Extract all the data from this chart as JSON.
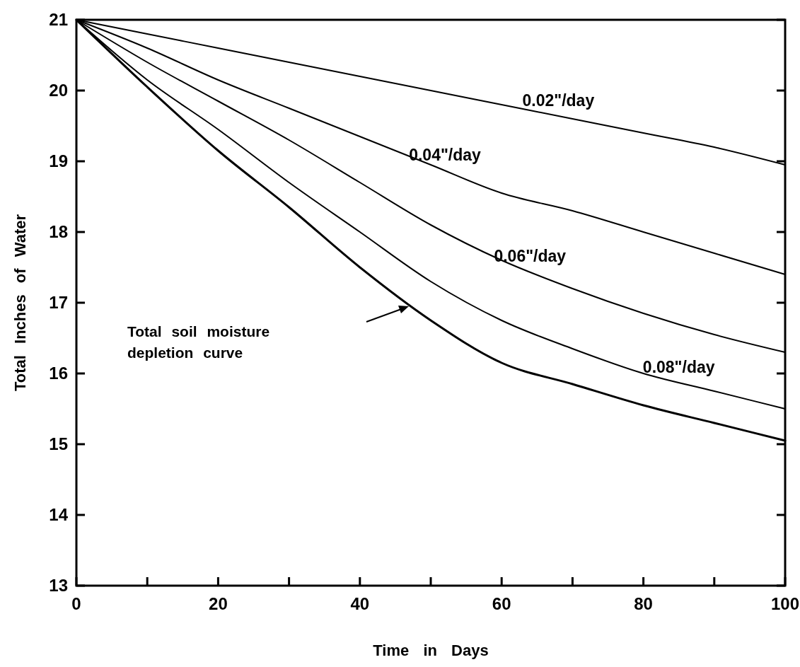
{
  "chart_data": {
    "type": "line",
    "xlabel": "Time in Days",
    "ylabel": "Total Inches of Water",
    "x": [
      0,
      10,
      20,
      30,
      40,
      50,
      60,
      70,
      80,
      90,
      100
    ],
    "xlim": [
      0,
      100
    ],
    "ylim": [
      13,
      21
    ],
    "xticks": [
      0,
      {
        "value": 10,
        "label": null
      },
      20,
      {
        "value": 30,
        "label": null
      },
      40,
      {
        "value": 50,
        "label": null
      },
      60,
      {
        "value": 70,
        "label": null
      },
      80,
      {
        "value": 90,
        "label": null
      },
      100
    ],
    "yticks": [
      13,
      14,
      15,
      16,
      17,
      18,
      19,
      20,
      21
    ],
    "grid": false,
    "legend": false,
    "marker": "none",
    "line_style": "solid",
    "series": [
      {
        "name": "0.02\"/day",
        "color": "#000000",
        "values": [
          21,
          20.8,
          20.6,
          20.4,
          20.2,
          20.0,
          19.8,
          19.6,
          19.4,
          19.2,
          18.95
        ]
      },
      {
        "name": "0.04\"/day",
        "color": "#000000",
        "values": [
          21,
          20.6,
          20.15,
          19.75,
          19.35,
          18.95,
          18.55,
          18.3,
          18.0,
          17.7,
          17.4
        ]
      },
      {
        "name": "0.06\"/day",
        "color": "#000000",
        "values": [
          21,
          20.4,
          19.85,
          19.3,
          18.7,
          18.1,
          17.6,
          17.2,
          16.85,
          16.55,
          16.3
        ]
      },
      {
        "name": "0.08\"/day",
        "color": "#000000",
        "values": [
          21,
          20.15,
          19.45,
          18.7,
          18.0,
          17.3,
          16.75,
          16.35,
          16.0,
          15.75,
          15.5
        ]
      },
      {
        "color": "#000000",
        "values": [
          21,
          20.05,
          19.15,
          18.35,
          17.5,
          16.75,
          16.15,
          15.85,
          15.55,
          15.3,
          15.05
        ]
      }
    ],
    "annotations": [
      "Total soil moisture depletion curve"
    ]
  }
}
